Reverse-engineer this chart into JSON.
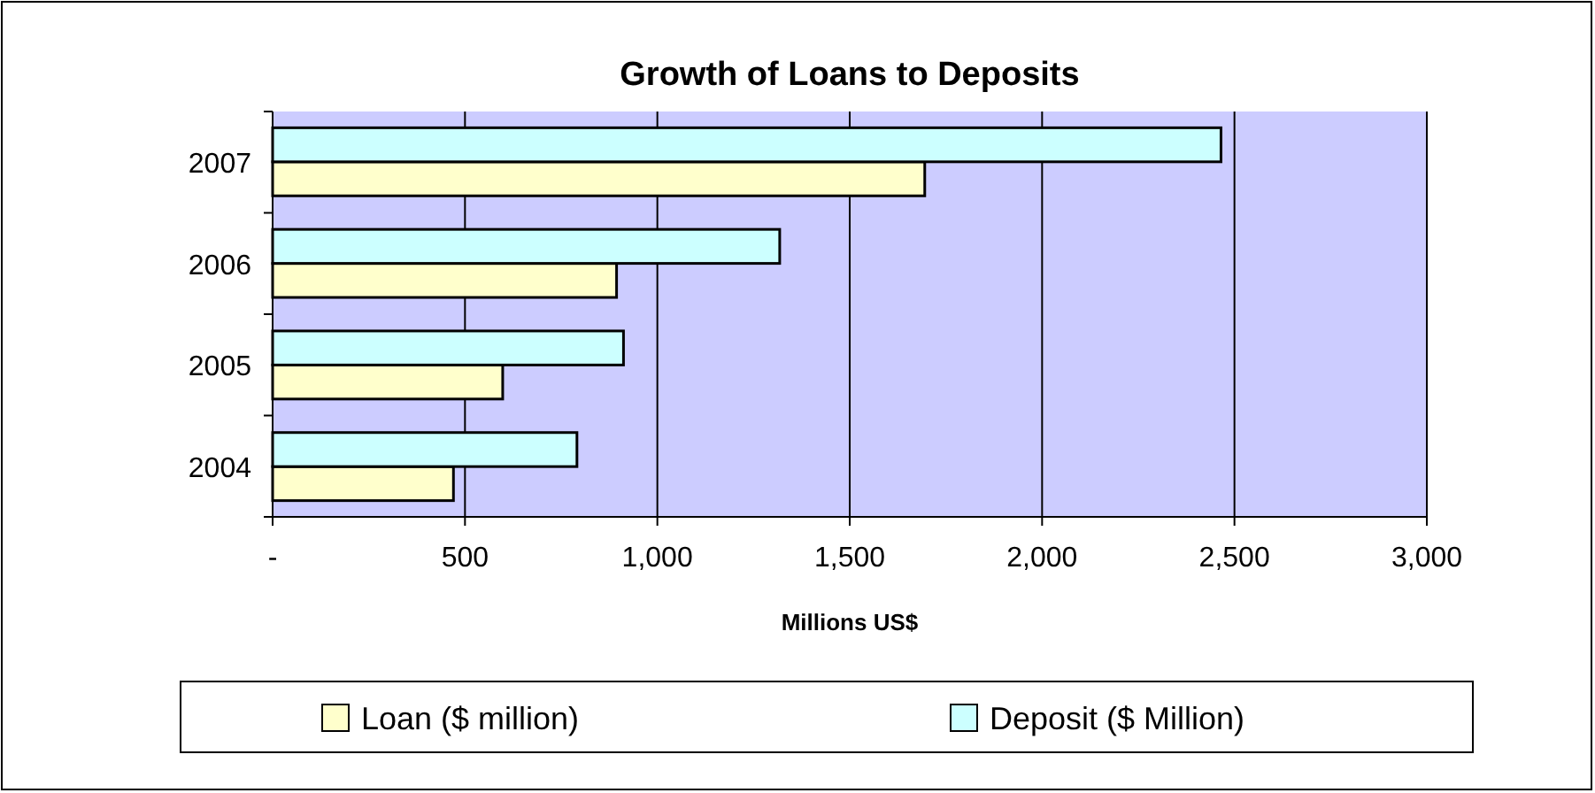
{
  "chart_data": {
    "type": "bar",
    "orientation": "horizontal",
    "title": "Growth of Loans to Deposits",
    "xlabel": "Millions US$",
    "categories": [
      "2007",
      "2006",
      "2005",
      "2004"
    ],
    "series": [
      {
        "name": "Loan ($ million)",
        "color": "#ffffcc",
        "values": [
          1695,
          894,
          598,
          470
        ]
      },
      {
        "name": "Deposit ($ Million)",
        "color": "#ccffff",
        "values": [
          2465,
          1318,
          912,
          791
        ]
      }
    ],
    "xlim": [
      0,
      3000
    ],
    "xticks": [
      {
        "value": 0,
        "label": "-"
      },
      {
        "value": 500,
        "label": "500"
      },
      {
        "value": 1000,
        "label": "1,000"
      },
      {
        "value": 1500,
        "label": "1,500"
      },
      {
        "value": 2000,
        "label": "2,000"
      },
      {
        "value": 2500,
        "label": "2,500"
      },
      {
        "value": 3000,
        "label": "3,000"
      }
    ],
    "grid": "x",
    "legend": "bottom"
  }
}
